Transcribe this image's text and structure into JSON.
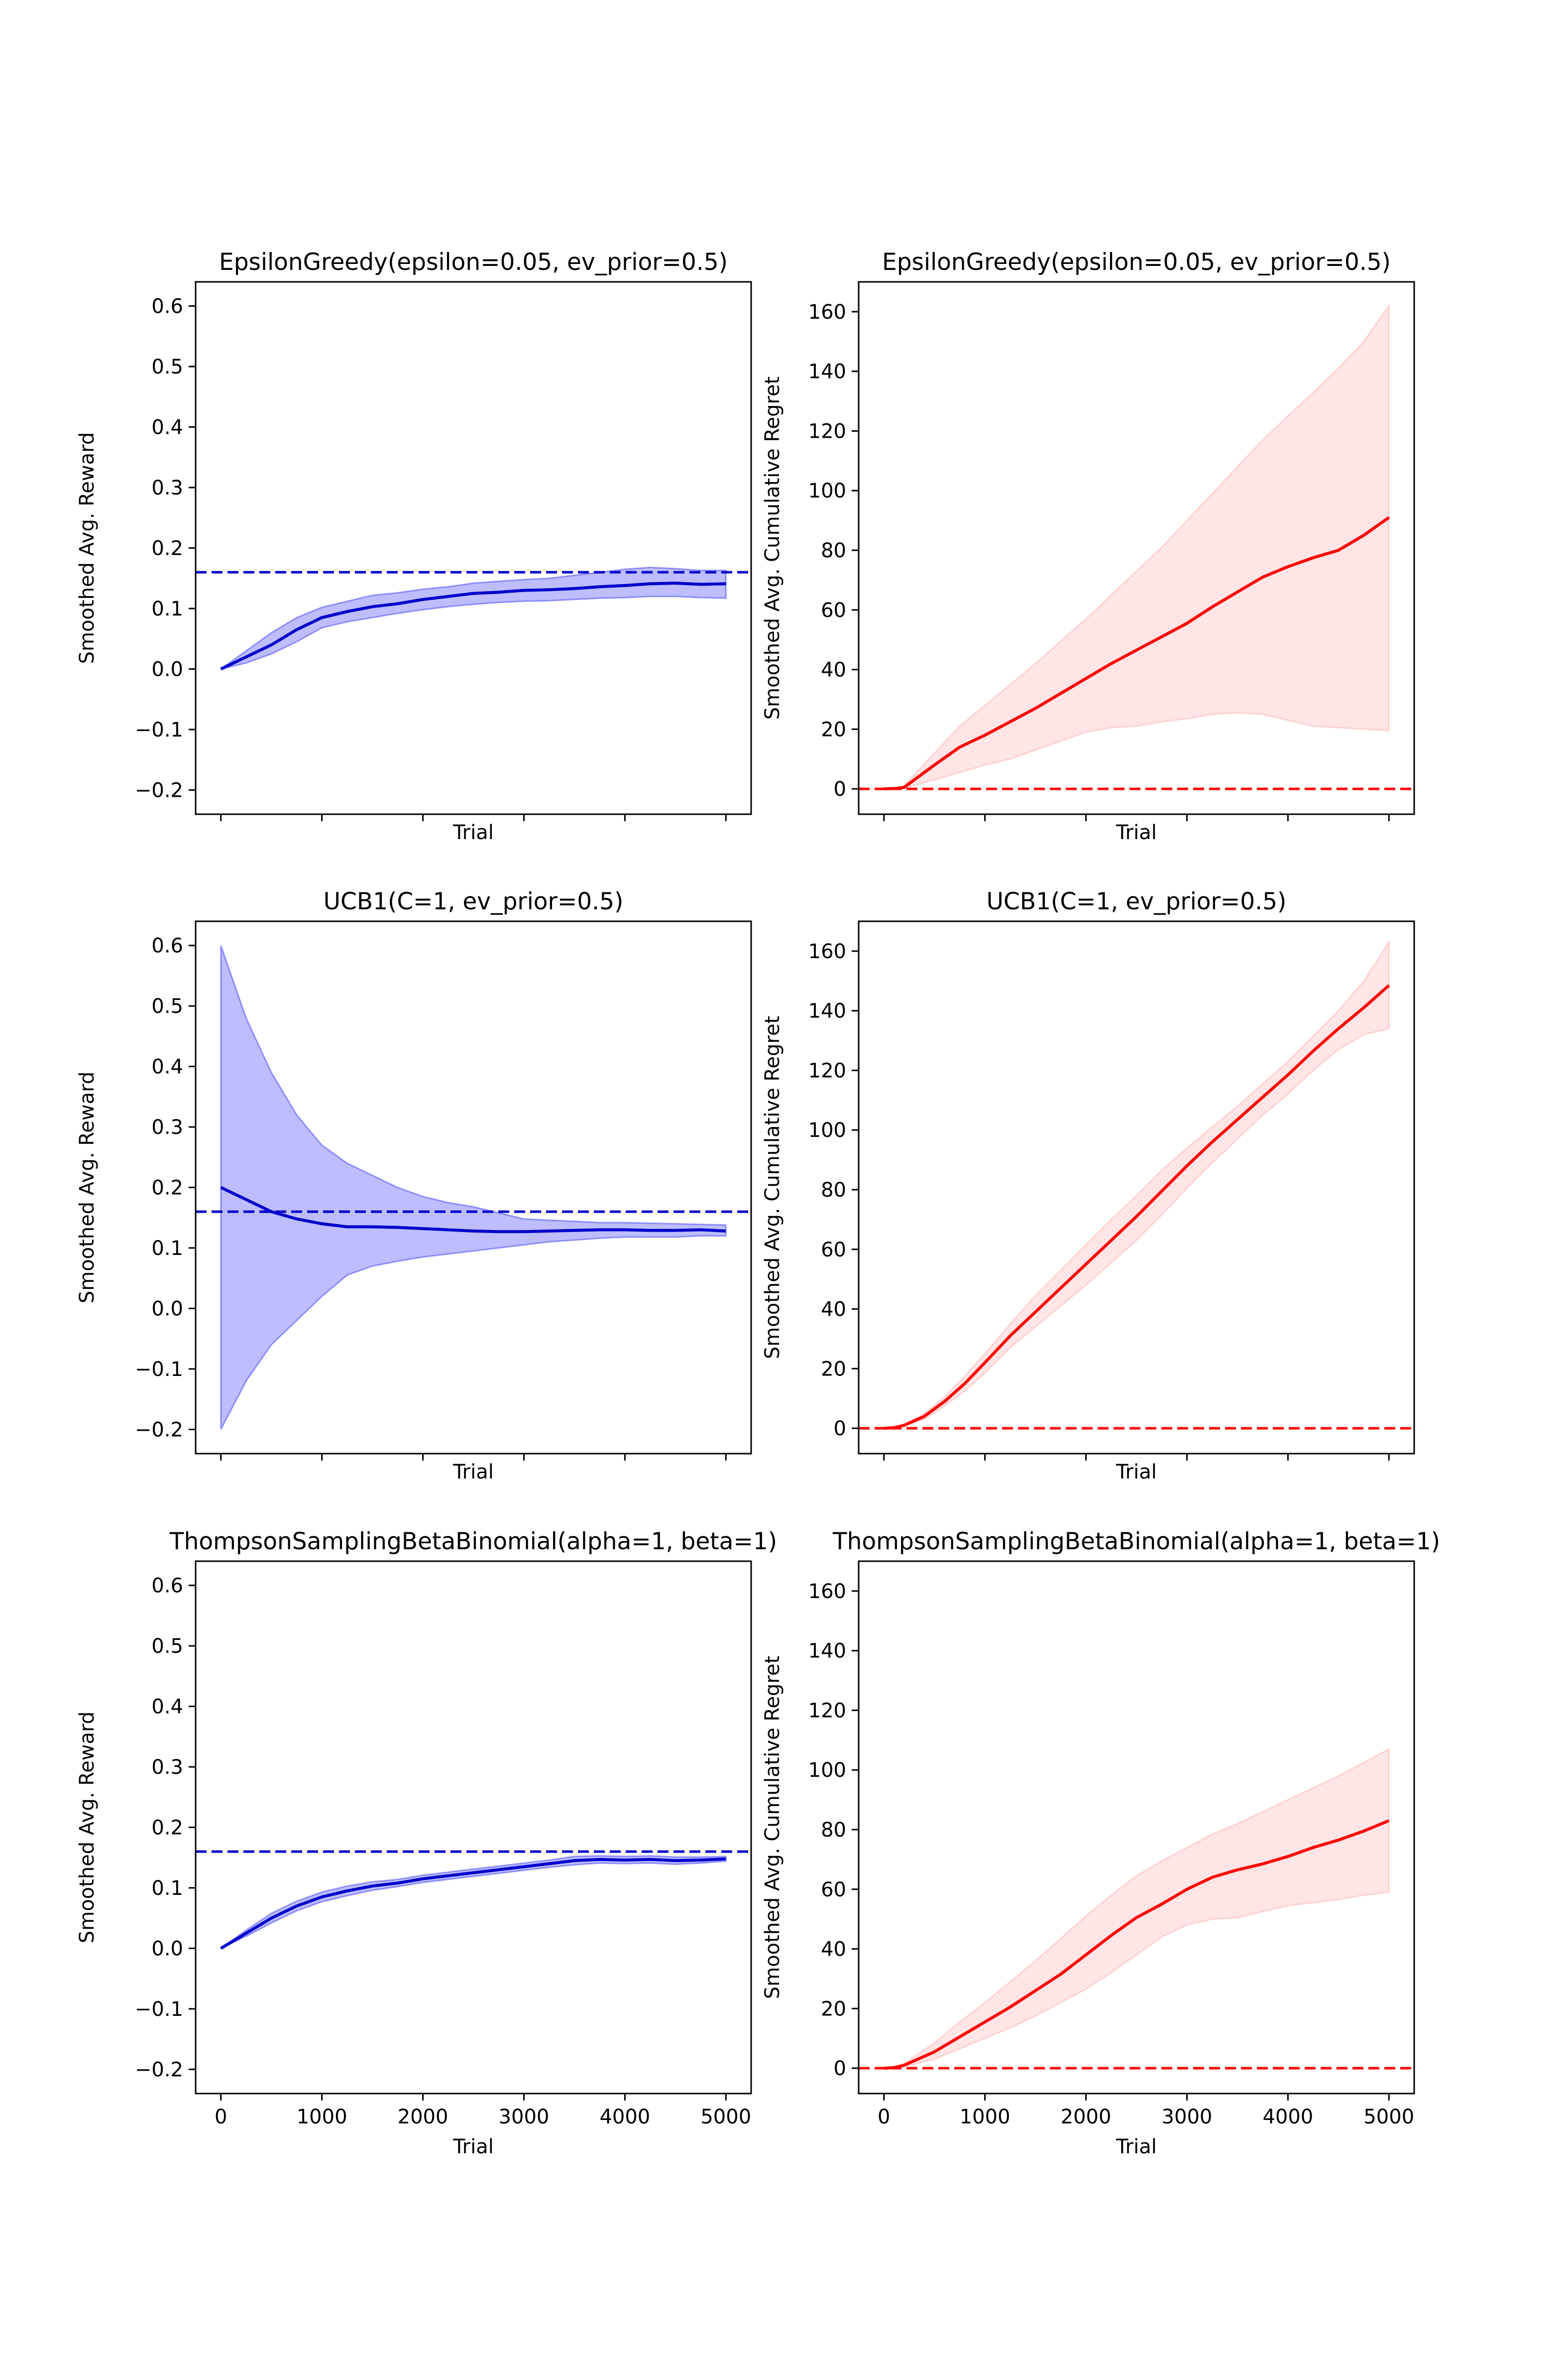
{
  "chart_data": [
    {
      "type": "line",
      "title": "EpsilonGreedy(epsilon=0.05, ev_prior=0.5)",
      "xlabel": "Trial",
      "ylabel": "Smoothed Avg. Reward",
      "xlim": [
        -250,
        5250
      ],
      "ylim": [
        -0.24,
        0.64
      ],
      "xticks": [
        0,
        1000,
        2000,
        3000,
        4000,
        5000
      ],
      "xtick_labels_visible": false,
      "yticks": [
        -0.2,
        -0.1,
        0.0,
        0.1,
        0.2,
        0.3,
        0.4,
        0.5,
        0.6
      ],
      "ytick_labels": [
        "−0.2",
        "−0.1",
        "0.0",
        "0.1",
        "0.2",
        "0.3",
        "0.4",
        "0.5",
        "0.6"
      ],
      "grid": false,
      "color": "#0000cc",
      "band_color": "#0000ff",
      "reference_line": {
        "y": 0.16,
        "style": "dashed"
      },
      "x": [
        0,
        250,
        500,
        750,
        1000,
        1250,
        1500,
        1750,
        2000,
        2250,
        2500,
        2750,
        3000,
        3250,
        3500,
        3750,
        4000,
        4250,
        4500,
        4750,
        5000
      ],
      "mean": [
        0.0,
        0.02,
        0.04,
        0.065,
        0.085,
        0.095,
        0.103,
        0.108,
        0.115,
        0.12,
        0.125,
        0.127,
        0.13,
        0.131,
        0.133,
        0.136,
        0.138,
        0.141,
        0.142,
        0.14,
        0.141
      ],
      "upper": [
        0.0,
        0.03,
        0.06,
        0.085,
        0.102,
        0.112,
        0.122,
        0.126,
        0.132,
        0.136,
        0.142,
        0.145,
        0.148,
        0.15,
        0.155,
        0.16,
        0.165,
        0.168,
        0.166,
        0.163,
        0.163
      ],
      "lower": [
        0.0,
        0.01,
        0.025,
        0.045,
        0.068,
        0.078,
        0.085,
        0.092,
        0.098,
        0.103,
        0.107,
        0.11,
        0.112,
        0.113,
        0.115,
        0.117,
        0.118,
        0.12,
        0.12,
        0.118,
        0.117
      ]
    },
    {
      "type": "line",
      "title": "EpsilonGreedy(epsilon=0.05, ev_prior=0.5)",
      "xlabel": "Trial",
      "ylabel": "Smoothed Avg. Cumulative Regret",
      "xlim": [
        -250,
        5250
      ],
      "ylim": [
        -8.5,
        170
      ],
      "xticks": [
        0,
        1000,
        2000,
        3000,
        4000,
        5000
      ],
      "xtick_labels_visible": false,
      "yticks": [
        0,
        20,
        40,
        60,
        80,
        100,
        120,
        140,
        160
      ],
      "ytick_labels": [
        "0",
        "20",
        "40",
        "60",
        "80",
        "100",
        "120",
        "140",
        "160"
      ],
      "grid": false,
      "color": "#ff0000",
      "band_color": "#ff9999",
      "reference_line": {
        "y": 0,
        "style": "dashed"
      },
      "x": [
        0,
        100,
        200,
        500,
        750,
        1000,
        1250,
        1500,
        1750,
        2000,
        2250,
        2500,
        2750,
        3000,
        3250,
        3500,
        3750,
        4000,
        4250,
        4500,
        4750,
        5000
      ],
      "mean": [
        0,
        0.1,
        0.5,
        8,
        14,
        18,
        22.5,
        27,
        32,
        37,
        42,
        46.5,
        51,
        55.5,
        61,
        66,
        71,
        74.5,
        77.5,
        80,
        85,
        91
      ],
      "upper": [
        0,
        0.2,
        1,
        12,
        21,
        28,
        35,
        42,
        49.5,
        57,
        65,
        73,
        81,
        90,
        99,
        108,
        117,
        125,
        133,
        141,
        150,
        162
      ],
      "lower": [
        0,
        0,
        0.2,
        3,
        5.5,
        8,
        10,
        13,
        16,
        19,
        20.5,
        21,
        22.5,
        23.5,
        25,
        25.5,
        25,
        23,
        21,
        20.5,
        20,
        19.5
      ]
    },
    {
      "type": "line",
      "title": "UCB1(C=1, ev_prior=0.5)",
      "xlabel": "Trial",
      "ylabel": "Smoothed Avg. Reward",
      "xlim": [
        -250,
        5250
      ],
      "ylim": [
        -0.24,
        0.64
      ],
      "xticks": [
        0,
        1000,
        2000,
        3000,
        4000,
        5000
      ],
      "xtick_labels_visible": false,
      "yticks": [
        -0.2,
        -0.1,
        0.0,
        0.1,
        0.2,
        0.3,
        0.4,
        0.5,
        0.6
      ],
      "ytick_labels": [
        "−0.2",
        "−0.1",
        "0.0",
        "0.1",
        "0.2",
        "0.3",
        "0.4",
        "0.5",
        "0.6"
      ],
      "grid": false,
      "color": "#0000cc",
      "band_color": "#0000ff",
      "reference_line": {
        "y": 0.16,
        "style": "dashed"
      },
      "x": [
        0,
        250,
        500,
        750,
        1000,
        1250,
        1500,
        1750,
        2000,
        2250,
        2500,
        2750,
        3000,
        3250,
        3500,
        3750,
        4000,
        4250,
        4500,
        4750,
        5000
      ],
      "mean": [
        0.2,
        0.18,
        0.16,
        0.148,
        0.14,
        0.135,
        0.135,
        0.134,
        0.132,
        0.13,
        0.128,
        0.127,
        0.127,
        0.128,
        0.129,
        0.13,
        0.13,
        0.129,
        0.129,
        0.13,
        0.128
      ],
      "upper": [
        0.6,
        0.48,
        0.39,
        0.32,
        0.27,
        0.24,
        0.22,
        0.2,
        0.185,
        0.175,
        0.168,
        0.158,
        0.148,
        0.146,
        0.144,
        0.142,
        0.142,
        0.141,
        0.14,
        0.139,
        0.138
      ],
      "lower": [
        -0.2,
        -0.12,
        -0.06,
        -0.02,
        0.02,
        0.055,
        0.07,
        0.078,
        0.085,
        0.09,
        0.095,
        0.1,
        0.105,
        0.11,
        0.113,
        0.116,
        0.118,
        0.118,
        0.118,
        0.12,
        0.12
      ]
    },
    {
      "type": "line",
      "title": "UCB1(C=1, ev_prior=0.5)",
      "xlabel": "Trial",
      "ylabel": "Smoothed Avg. Cumulative Regret",
      "xlim": [
        -250,
        5250
      ],
      "ylim": [
        -8.5,
        170
      ],
      "xticks": [
        0,
        1000,
        2000,
        3000,
        4000,
        5000
      ],
      "xtick_labels_visible": false,
      "yticks": [
        0,
        20,
        40,
        60,
        80,
        100,
        120,
        140,
        160
      ],
      "ytick_labels": [
        "0",
        "20",
        "40",
        "60",
        "80",
        "100",
        "120",
        "140",
        "160"
      ],
      "grid": false,
      "color": "#ff0000",
      "band_color": "#ff9999",
      "reference_line": {
        "y": 0,
        "style": "dashed"
      },
      "x": [
        0,
        100,
        200,
        400,
        600,
        800,
        1000,
        1250,
        1500,
        1750,
        2000,
        2250,
        2500,
        2750,
        3000,
        3250,
        3500,
        3750,
        4000,
        4250,
        4500,
        4750,
        5000
      ],
      "mean": [
        0,
        0.2,
        1,
        4,
        9,
        15,
        22,
        31,
        39,
        47,
        55,
        63,
        71,
        79.5,
        88,
        96,
        103.5,
        111,
        118.5,
        126.5,
        134,
        141,
        148.5
      ],
      "upper": [
        0,
        0.3,
        1.3,
        5,
        10.5,
        17.5,
        25,
        35,
        44.5,
        53,
        61.5,
        70,
        78,
        86.5,
        94,
        101,
        108,
        115.5,
        123,
        131.5,
        140,
        150,
        163
      ],
      "lower": [
        0,
        0.1,
        0.7,
        3,
        7.5,
        12.5,
        18.5,
        27,
        34,
        41,
        48,
        55.5,
        63,
        71.5,
        80.5,
        89,
        97,
        105,
        112,
        120,
        127,
        132,
        134
      ]
    },
    {
      "type": "line",
      "title": "ThompsonSamplingBetaBinomial(alpha=1, beta=1)",
      "xlabel": "Trial",
      "ylabel": "Smoothed Avg. Reward",
      "xlim": [
        -250,
        5250
      ],
      "ylim": [
        -0.24,
        0.64
      ],
      "xticks": [
        0,
        1000,
        2000,
        3000,
        4000,
        5000
      ],
      "xtick_labels": [
        "0",
        "1000",
        "2000",
        "3000",
        "4000",
        "5000"
      ],
      "xtick_labels_visible": true,
      "yticks": [
        -0.2,
        -0.1,
        0.0,
        0.1,
        0.2,
        0.3,
        0.4,
        0.5,
        0.6
      ],
      "ytick_labels": [
        "−0.2",
        "−0.1",
        "0.0",
        "0.1",
        "0.2",
        "0.3",
        "0.4",
        "0.5",
        "0.6"
      ],
      "grid": false,
      "color": "#0000cc",
      "band_color": "#0000ff",
      "reference_line": {
        "y": 0.16,
        "style": "dashed"
      },
      "x": [
        0,
        250,
        500,
        750,
        1000,
        1250,
        1500,
        1750,
        2000,
        2250,
        2500,
        2750,
        3000,
        3250,
        3500,
        3750,
        4000,
        4250,
        4500,
        4750,
        5000
      ],
      "mean": [
        0.0,
        0.025,
        0.05,
        0.07,
        0.085,
        0.095,
        0.103,
        0.108,
        0.115,
        0.12,
        0.125,
        0.13,
        0.135,
        0.14,
        0.145,
        0.147,
        0.146,
        0.147,
        0.145,
        0.146,
        0.148
      ],
      "upper": [
        0.0,
        0.03,
        0.058,
        0.078,
        0.093,
        0.103,
        0.11,
        0.114,
        0.121,
        0.126,
        0.131,
        0.136,
        0.141,
        0.146,
        0.152,
        0.153,
        0.152,
        0.153,
        0.151,
        0.151,
        0.152
      ],
      "lower": [
        0.0,
        0.02,
        0.042,
        0.062,
        0.077,
        0.087,
        0.096,
        0.102,
        0.109,
        0.114,
        0.119,
        0.124,
        0.129,
        0.134,
        0.138,
        0.141,
        0.14,
        0.141,
        0.139,
        0.141,
        0.144
      ]
    },
    {
      "type": "line",
      "title": "ThompsonSamplingBetaBinomial(alpha=1, beta=1)",
      "xlabel": "Trial",
      "ylabel": "Smoothed Avg. Cumulative Regret",
      "xlim": [
        -250,
        5250
      ],
      "ylim": [
        -8.5,
        170
      ],
      "xticks": [
        0,
        1000,
        2000,
        3000,
        4000,
        5000
      ],
      "xtick_labels": [
        "0",
        "1000",
        "2000",
        "3000",
        "4000",
        "5000"
      ],
      "xtick_labels_visible": true,
      "yticks": [
        0,
        20,
        40,
        60,
        80,
        100,
        120,
        140,
        160
      ],
      "ytick_labels": [
        "0",
        "20",
        "40",
        "60",
        "80",
        "100",
        "120",
        "140",
        "160"
      ],
      "grid": false,
      "color": "#ff0000",
      "band_color": "#ff9999",
      "reference_line": {
        "y": 0,
        "style": "dashed"
      },
      "x": [
        0,
        100,
        200,
        500,
        750,
        1000,
        1250,
        1500,
        1750,
        2000,
        2250,
        2500,
        2750,
        3000,
        3250,
        3500,
        3750,
        4000,
        4250,
        4500,
        4750,
        5000
      ],
      "mean": [
        0,
        0.2,
        1,
        5.5,
        10.5,
        15.5,
        20.5,
        26,
        31.5,
        38,
        44.5,
        50.5,
        55,
        60,
        64,
        66.5,
        68.5,
        71,
        74,
        76.5,
        79.5,
        83
      ],
      "upper": [
        0,
        0.3,
        1.5,
        8.5,
        15.5,
        22,
        29,
        36,
        43.5,
        51,
        58,
        64.5,
        69.5,
        74,
        78.5,
        82,
        86,
        90,
        94,
        98,
        102.5,
        107
      ],
      "lower": [
        0,
        0.1,
        0.5,
        3,
        6.5,
        10,
        13.5,
        17.5,
        22,
        26.5,
        32,
        38,
        44,
        48,
        50,
        50.5,
        52.5,
        54.5,
        55.5,
        56.5,
        58,
        59
      ]
    }
  ]
}
